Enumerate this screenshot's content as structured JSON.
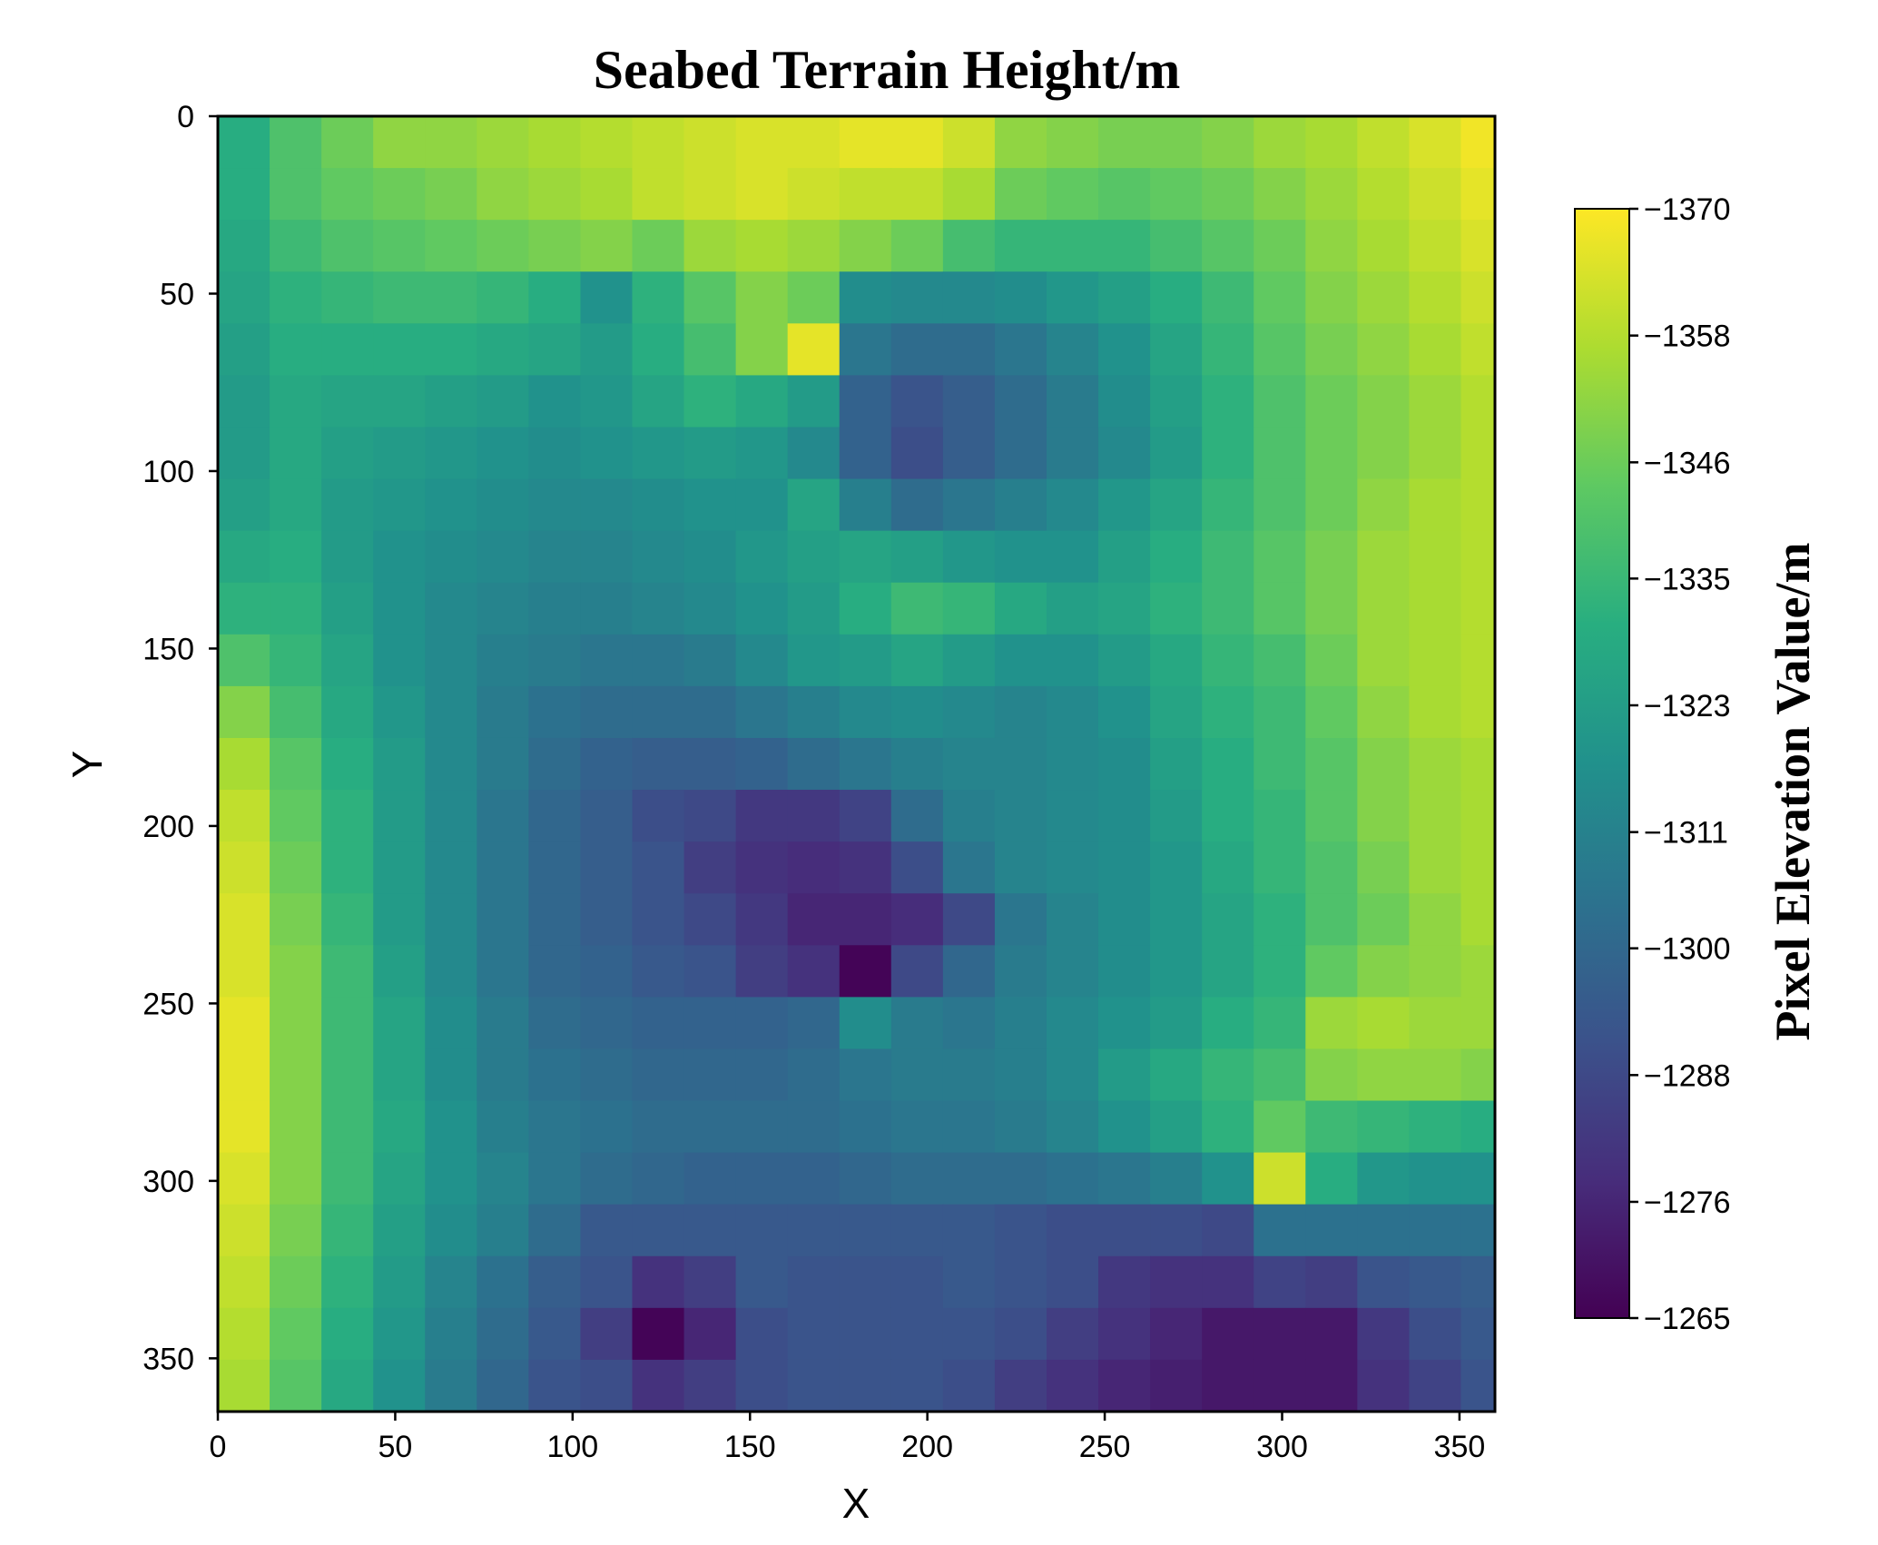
{
  "chart_data": {
    "type": "heatmap",
    "title": "Seabed Terrain Height/m",
    "xlabel": "X",
    "ylabel": "Y",
    "colorbar_label": "Pixel Elevation Value/m",
    "colormap": "viridis",
    "y_inverted": true,
    "xlim": [
      0,
      360
    ],
    "ylim": [
      365,
      0
    ],
    "x_ticks": [
      0,
      50,
      100,
      150,
      200,
      250,
      300,
      350
    ],
    "y_ticks": [
      0,
      50,
      100,
      150,
      200,
      250,
      300,
      350
    ],
    "colorbar_range": [
      -1370,
      -1265
    ],
    "colorbar_ticks": [
      -1265,
      -1276,
      -1288,
      -1300,
      -1311,
      -1323,
      -1335,
      -1346,
      -1358,
      -1370
    ],
    "cell_size": 14.6,
    "grid_rows": 25,
    "grid_cols": 25,
    "values": [
      [
        -1330,
        -1340,
        -1346,
        -1352,
        -1352,
        -1354,
        -1356,
        -1358,
        -1360,
        -1362,
        -1364,
        -1364,
        -1366,
        -1366,
        -1362,
        -1352,
        -1350,
        -1348,
        -1348,
        -1350,
        -1354,
        -1356,
        -1360,
        -1364,
        -1368
      ],
      [
        -1330,
        -1340,
        -1344,
        -1346,
        -1348,
        -1352,
        -1354,
        -1356,
        -1360,
        -1362,
        -1364,
        -1362,
        -1360,
        -1360,
        -1356,
        -1346,
        -1344,
        -1342,
        -1344,
        -1346,
        -1350,
        -1354,
        -1358,
        -1362,
        -1366
      ],
      [
        -1328,
        -1336,
        -1340,
        -1342,
        -1344,
        -1346,
        -1348,
        -1350,
        -1346,
        -1354,
        -1356,
        -1354,
        -1350,
        -1346,
        -1338,
        -1334,
        -1334,
        -1334,
        -1338,
        -1342,
        -1346,
        -1352,
        -1356,
        -1360,
        -1364
      ],
      [
        -1326,
        -1332,
        -1334,
        -1336,
        -1336,
        -1334,
        -1330,
        -1318,
        -1332,
        -1342,
        -1350,
        -1346,
        -1316,
        -1314,
        -1314,
        -1316,
        -1320,
        -1324,
        -1330,
        -1336,
        -1344,
        -1350,
        -1354,
        -1358,
        -1362
      ],
      [
        -1324,
        -1330,
        -1330,
        -1330,
        -1330,
        -1328,
        -1326,
        -1322,
        -1330,
        -1338,
        -1350,
        -1366,
        -1306,
        -1302,
        -1302,
        -1306,
        -1312,
        -1318,
        -1326,
        -1334,
        -1342,
        -1348,
        -1352,
        -1356,
        -1360
      ],
      [
        -1322,
        -1328,
        -1326,
        -1326,
        -1324,
        -1322,
        -1318,
        -1320,
        -1326,
        -1332,
        -1328,
        -1322,
        -1298,
        -1292,
        -1296,
        -1302,
        -1308,
        -1316,
        -1324,
        -1332,
        -1340,
        -1346,
        -1350,
        -1354,
        -1358
      ],
      [
        -1322,
        -1328,
        -1324,
        -1322,
        -1320,
        -1318,
        -1316,
        -1318,
        -1320,
        -1322,
        -1320,
        -1314,
        -1298,
        -1290,
        -1296,
        -1302,
        -1308,
        -1314,
        -1322,
        -1332,
        -1340,
        -1346,
        -1350,
        -1354,
        -1358
      ],
      [
        -1324,
        -1328,
        -1322,
        -1320,
        -1318,
        -1316,
        -1314,
        -1314,
        -1316,
        -1318,
        -1318,
        -1326,
        -1310,
        -1302,
        -1306,
        -1310,
        -1314,
        -1320,
        -1326,
        -1334,
        -1340,
        -1346,
        -1352,
        -1356,
        -1358
      ],
      [
        -1328,
        -1330,
        -1322,
        -1318,
        -1316,
        -1314,
        -1312,
        -1312,
        -1314,
        -1316,
        -1320,
        -1324,
        -1326,
        -1324,
        -1320,
        -1318,
        -1318,
        -1324,
        -1330,
        -1336,
        -1342,
        -1348,
        -1354,
        -1356,
        -1358
      ],
      [
        -1332,
        -1332,
        -1324,
        -1318,
        -1314,
        -1312,
        -1310,
        -1310,
        -1312,
        -1314,
        -1318,
        -1322,
        -1330,
        -1336,
        -1334,
        -1328,
        -1324,
        -1326,
        -1332,
        -1336,
        -1342,
        -1348,
        -1354,
        -1356,
        -1358
      ],
      [
        -1340,
        -1334,
        -1326,
        -1318,
        -1314,
        -1310,
        -1308,
        -1306,
        -1306,
        -1308,
        -1314,
        -1320,
        -1322,
        -1326,
        -1322,
        -1318,
        -1318,
        -1322,
        -1328,
        -1334,
        -1338,
        -1346,
        -1354,
        -1356,
        -1358
      ],
      [
        -1350,
        -1338,
        -1328,
        -1320,
        -1314,
        -1308,
        -1304,
        -1302,
        -1302,
        -1302,
        -1306,
        -1310,
        -1314,
        -1316,
        -1314,
        -1312,
        -1314,
        -1318,
        -1326,
        -1332,
        -1336,
        -1344,
        -1352,
        -1356,
        -1358
      ],
      [
        -1356,
        -1342,
        -1330,
        -1322,
        -1314,
        -1308,
        -1302,
        -1298,
        -1296,
        -1296,
        -1298,
        -1302,
        -1306,
        -1310,
        -1312,
        -1312,
        -1314,
        -1316,
        -1324,
        -1330,
        -1336,
        -1342,
        -1350,
        -1354,
        -1356
      ],
      [
        -1360,
        -1344,
        -1332,
        -1322,
        -1314,
        -1306,
        -1300,
        -1296,
        -1290,
        -1288,
        -1282,
        -1282,
        -1286,
        -1302,
        -1310,
        -1312,
        -1314,
        -1316,
        -1322,
        -1330,
        -1334,
        -1342,
        -1350,
        -1354,
        -1356
      ],
      [
        -1362,
        -1346,
        -1332,
        -1322,
        -1314,
        -1306,
        -1300,
        -1296,
        -1292,
        -1284,
        -1280,
        -1278,
        -1280,
        -1290,
        -1306,
        -1312,
        -1314,
        -1316,
        -1320,
        -1328,
        -1334,
        -1340,
        -1348,
        -1354,
        -1356
      ],
      [
        -1364,
        -1348,
        -1334,
        -1322,
        -1314,
        -1306,
        -1300,
        -1296,
        -1292,
        -1288,
        -1282,
        -1276,
        -1276,
        -1278,
        -1288,
        -1306,
        -1312,
        -1316,
        -1320,
        -1326,
        -1332,
        -1340,
        -1346,
        -1352,
        -1356
      ],
      [
        -1364,
        -1350,
        -1336,
        -1324,
        -1314,
        -1306,
        -1300,
        -1298,
        -1294,
        -1292,
        -1284,
        -1280,
        -1266,
        -1288,
        -1300,
        -1308,
        -1312,
        -1316,
        -1320,
        -1326,
        -1332,
        -1344,
        -1350,
        -1352,
        -1354
      ],
      [
        -1366,
        -1350,
        -1336,
        -1326,
        -1316,
        -1308,
        -1302,
        -1300,
        -1298,
        -1298,
        -1298,
        -1300,
        -1316,
        -1308,
        -1306,
        -1310,
        -1314,
        -1318,
        -1322,
        -1330,
        -1334,
        -1354,
        -1356,
        -1354,
        -1354
      ],
      [
        -1366,
        -1350,
        -1336,
        -1326,
        -1316,
        -1308,
        -1304,
        -1302,
        -1300,
        -1300,
        -1300,
        -1302,
        -1306,
        -1308,
        -1308,
        -1310,
        -1314,
        -1322,
        -1328,
        -1334,
        -1338,
        -1350,
        -1352,
        -1352,
        -1350
      ],
      [
        -1366,
        -1350,
        -1336,
        -1328,
        -1318,
        -1310,
        -1306,
        -1304,
        -1302,
        -1302,
        -1302,
        -1302,
        -1304,
        -1306,
        -1306,
        -1308,
        -1312,
        -1318,
        -1324,
        -1332,
        -1344,
        -1336,
        -1334,
        -1332,
        -1330
      ],
      [
        -1364,
        -1350,
        -1336,
        -1326,
        -1318,
        -1312,
        -1306,
        -1302,
        -1300,
        -1298,
        -1298,
        -1298,
        -1300,
        -1302,
        -1302,
        -1302,
        -1304,
        -1306,
        -1310,
        -1318,
        -1362,
        -1330,
        -1320,
        -1318,
        -1318
      ],
      [
        -1362,
        -1348,
        -1334,
        -1324,
        -1316,
        -1310,
        -1302,
        -1294,
        -1294,
        -1294,
        -1294,
        -1294,
        -1294,
        -1294,
        -1294,
        -1292,
        -1290,
        -1290,
        -1290,
        -1288,
        -1304,
        -1304,
        -1304,
        -1304,
        -1304
      ],
      [
        -1360,
        -1346,
        -1332,
        -1322,
        -1312,
        -1304,
        -1296,
        -1292,
        -1280,
        -1284,
        -1294,
        -1292,
        -1292,
        -1292,
        -1294,
        -1292,
        -1290,
        -1282,
        -1280,
        -1280,
        -1286,
        -1284,
        -1292,
        -1294,
        -1296
      ],
      [
        -1358,
        -1344,
        -1330,
        -1320,
        -1310,
        -1302,
        -1294,
        -1284,
        -1266,
        -1276,
        -1290,
        -1292,
        -1292,
        -1292,
        -1292,
        -1290,
        -1284,
        -1280,
        -1276,
        -1272,
        -1272,
        -1272,
        -1282,
        -1290,
        -1294
      ],
      [
        -1356,
        -1342,
        -1328,
        -1318,
        -1308,
        -1300,
        -1292,
        -1290,
        -1280,
        -1284,
        -1290,
        -1292,
        -1292,
        -1292,
        -1290,
        -1284,
        -1280,
        -1276,
        -1274,
        -1272,
        -1272,
        -1272,
        -1280,
        -1286,
        -1292
      ]
    ]
  }
}
